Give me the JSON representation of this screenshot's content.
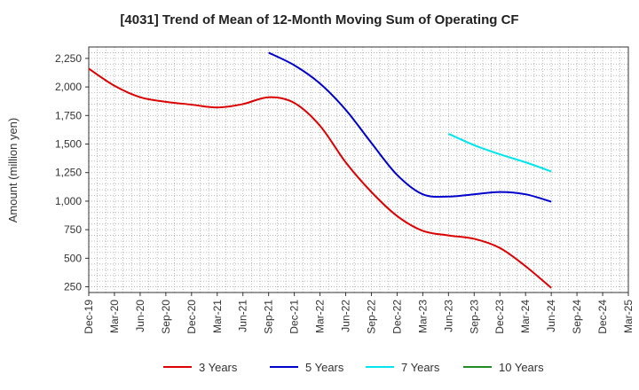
{
  "chart_data": {
    "type": "line",
    "title": "[4031]  Trend of Mean of 12-Month Moving Sum of Operating CF",
    "xlabel": "",
    "ylabel": "Amount (million yen)",
    "ylim": [
      200,
      2350
    ],
    "yticks": [
      250,
      500,
      750,
      1000,
      1250,
      1500,
      1750,
      2000,
      2250
    ],
    "ytick_labels": [
      "250",
      "500",
      "750",
      "1,000",
      "1,250",
      "1,500",
      "1,750",
      "2,000",
      "2,250"
    ],
    "categories": [
      "Dec-19",
      "Mar-20",
      "Jun-20",
      "Sep-20",
      "Dec-20",
      "Mar-21",
      "Jun-21",
      "Sep-21",
      "Dec-21",
      "Mar-22",
      "Jun-22",
      "Sep-22",
      "Dec-22",
      "Mar-23",
      "Jun-23",
      "Sep-23",
      "Dec-23",
      "Mar-24",
      "Jun-24",
      "Sep-24",
      "Dec-24",
      "Mar-25"
    ],
    "grid": true,
    "legend_position": "bottom",
    "series": [
      {
        "name": "3 Years",
        "color": "#dd0000",
        "values": [
          2160,
          2010,
          1910,
          1870,
          1845,
          1820,
          1850,
          1910,
          1860,
          1660,
          1340,
          1080,
          870,
          740,
          700,
          670,
          590,
          430,
          240,
          null,
          null,
          null
        ]
      },
      {
        "name": "5 Years",
        "color": "#0000cc",
        "values": [
          null,
          null,
          null,
          null,
          null,
          null,
          null,
          2300,
          2190,
          2030,
          1800,
          1510,
          1230,
          1060,
          1040,
          1060,
          1080,
          1060,
          995,
          null,
          null,
          null
        ]
      },
      {
        "name": "7 Years",
        "color": "#00e5ee",
        "values": [
          null,
          null,
          null,
          null,
          null,
          null,
          null,
          null,
          null,
          null,
          null,
          null,
          null,
          null,
          1590,
          1490,
          1410,
          1340,
          1260,
          null,
          null,
          null
        ]
      },
      {
        "name": "10 Years",
        "color": "#228b22",
        "values": [
          null,
          null,
          null,
          null,
          null,
          null,
          null,
          null,
          null,
          null,
          null,
          null,
          null,
          null,
          null,
          null,
          null,
          null,
          null,
          null,
          null,
          null
        ]
      }
    ]
  }
}
